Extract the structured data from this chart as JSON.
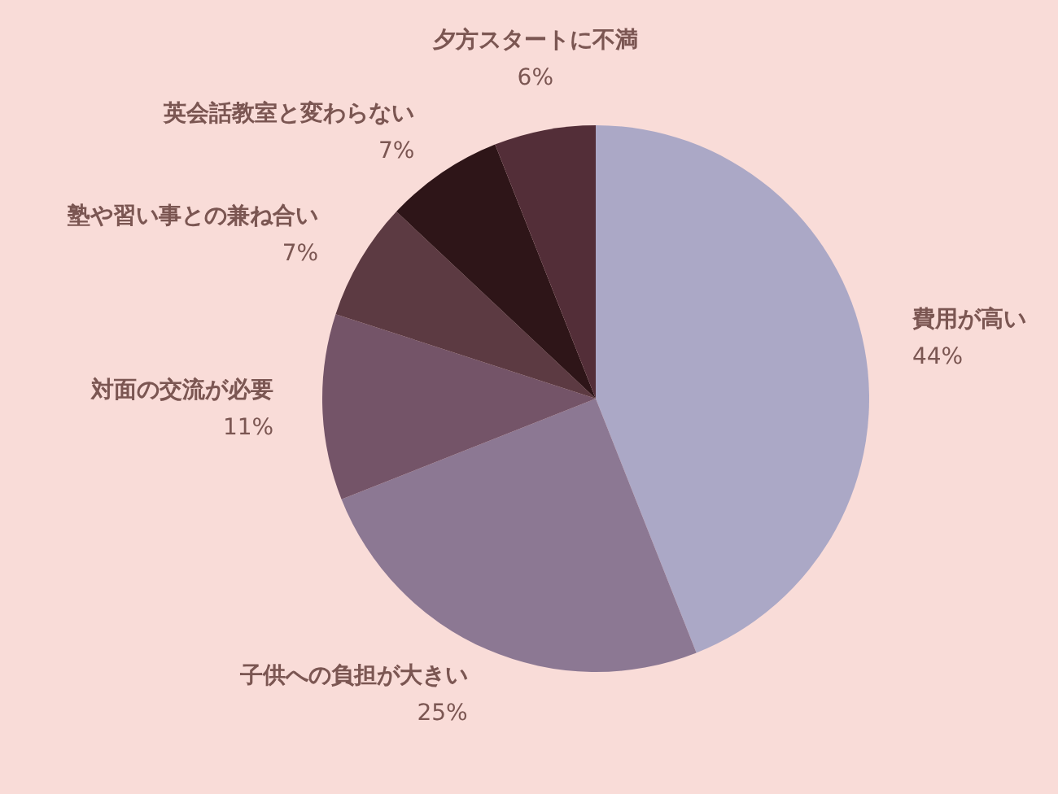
{
  "chart_data": {
    "type": "pie",
    "categories": [
      "費用が高い",
      "子供への負担が大きい",
      "対面の交流が必要",
      "塾や習い事との兼ね合い",
      "英会話教室と変わらない",
      "夕方スタートに不満"
    ],
    "values": [
      44,
      25,
      11,
      7,
      7,
      6
    ],
    "value_labels": [
      "44%",
      "25%",
      "11%",
      "7%",
      "7%",
      "6%"
    ],
    "colors": [
      "#aba8c6",
      "#8c7893",
      "#745468",
      "#5c3a42",
      "#2e1518",
      "#532e38"
    ],
    "legend": false
  }
}
